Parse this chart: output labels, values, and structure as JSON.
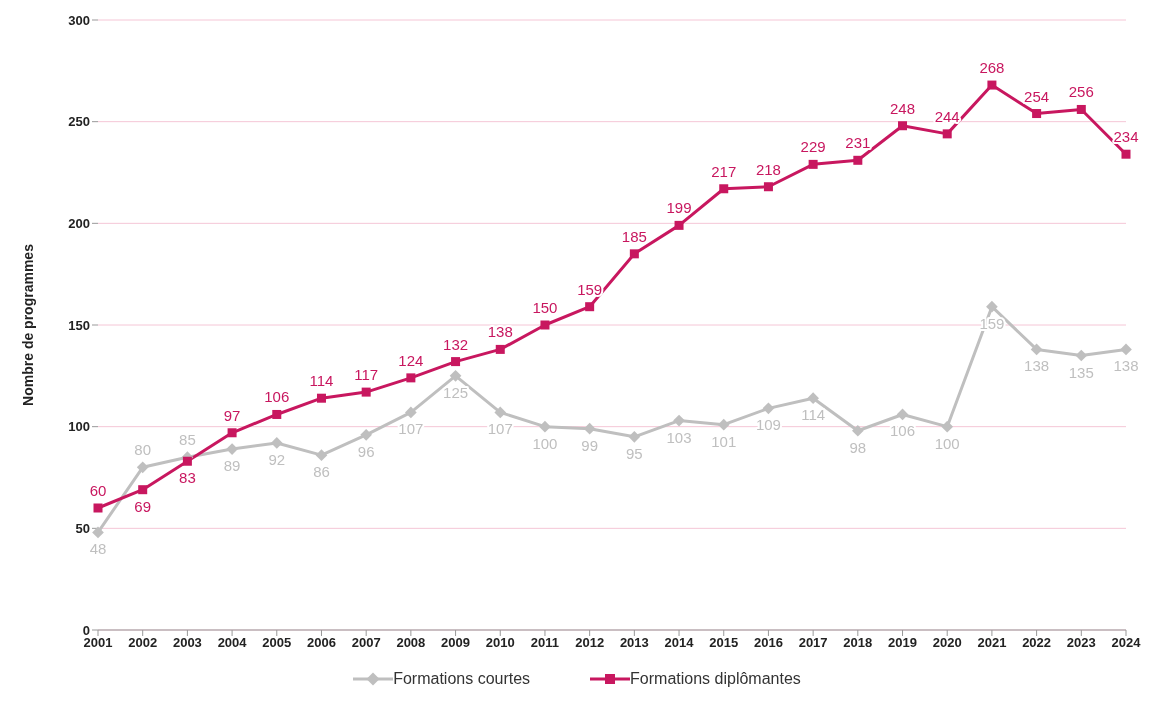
{
  "chart_data": {
    "type": "line",
    "ylabel": "Nombre de programmes",
    "categories": [
      "2001",
      "2002",
      "2003",
      "2004",
      "2005",
      "2006",
      "2007",
      "2008",
      "2009",
      "2010",
      "2011",
      "2012",
      "2013",
      "2014",
      "2015",
      "2016",
      "2017",
      "2018",
      "2019",
      "2020",
      "2021",
      "2022",
      "2023",
      "2024"
    ],
    "series": [
      {
        "name": "Formations courtes",
        "color": "#bfbfbf",
        "marker": "diamond",
        "values": [
          48,
          80,
          85,
          89,
          92,
          86,
          96,
          107,
          125,
          107,
          100,
          99,
          95,
          103,
          101,
          109,
          114,
          98,
          106,
          100,
          159,
          138,
          135,
          138
        ]
      },
      {
        "name": "Formations diplômantes",
        "color": "#c8175f",
        "marker": "square",
        "values": [
          60,
          69,
          83,
          97,
          106,
          114,
          117,
          124,
          132,
          138,
          150,
          159,
          185,
          199,
          217,
          218,
          229,
          231,
          248,
          244,
          268,
          254,
          256,
          234
        ]
      }
    ],
    "ylim": [
      0,
      300
    ],
    "yticks": [
      0,
      50,
      100,
      150,
      200,
      250,
      300
    ],
    "grid": "y",
    "legend": "bottom",
    "data_labels": true,
    "line_style": "solid"
  }
}
